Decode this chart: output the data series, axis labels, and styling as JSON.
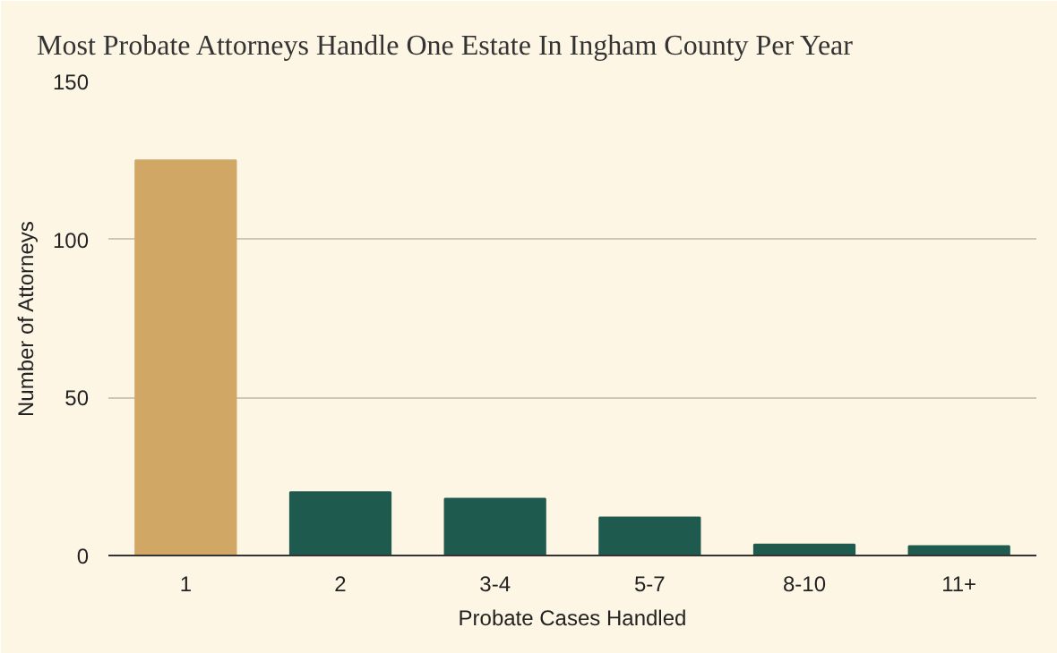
{
  "chart_data": {
    "type": "bar",
    "title": "Most Probate Attorneys Handle One Estate In Ingham County Per Year",
    "xlabel": "Probate Cases Handled",
    "ylabel": "Number of Attorneys",
    "categories": [
      "1",
      "2",
      "3-4",
      "5-7",
      "8-10",
      "11+"
    ],
    "values": [
      125,
      20,
      18,
      12,
      3.5,
      3
    ],
    "colors": [
      "#d0a764",
      "#1f5a4e",
      "#1f5a4e",
      "#1f5a4e",
      "#1f5a4e",
      "#1f5a4e"
    ],
    "ylim": [
      0,
      150
    ],
    "yticks": [
      0,
      50,
      100,
      150
    ],
    "grid": "y"
  }
}
